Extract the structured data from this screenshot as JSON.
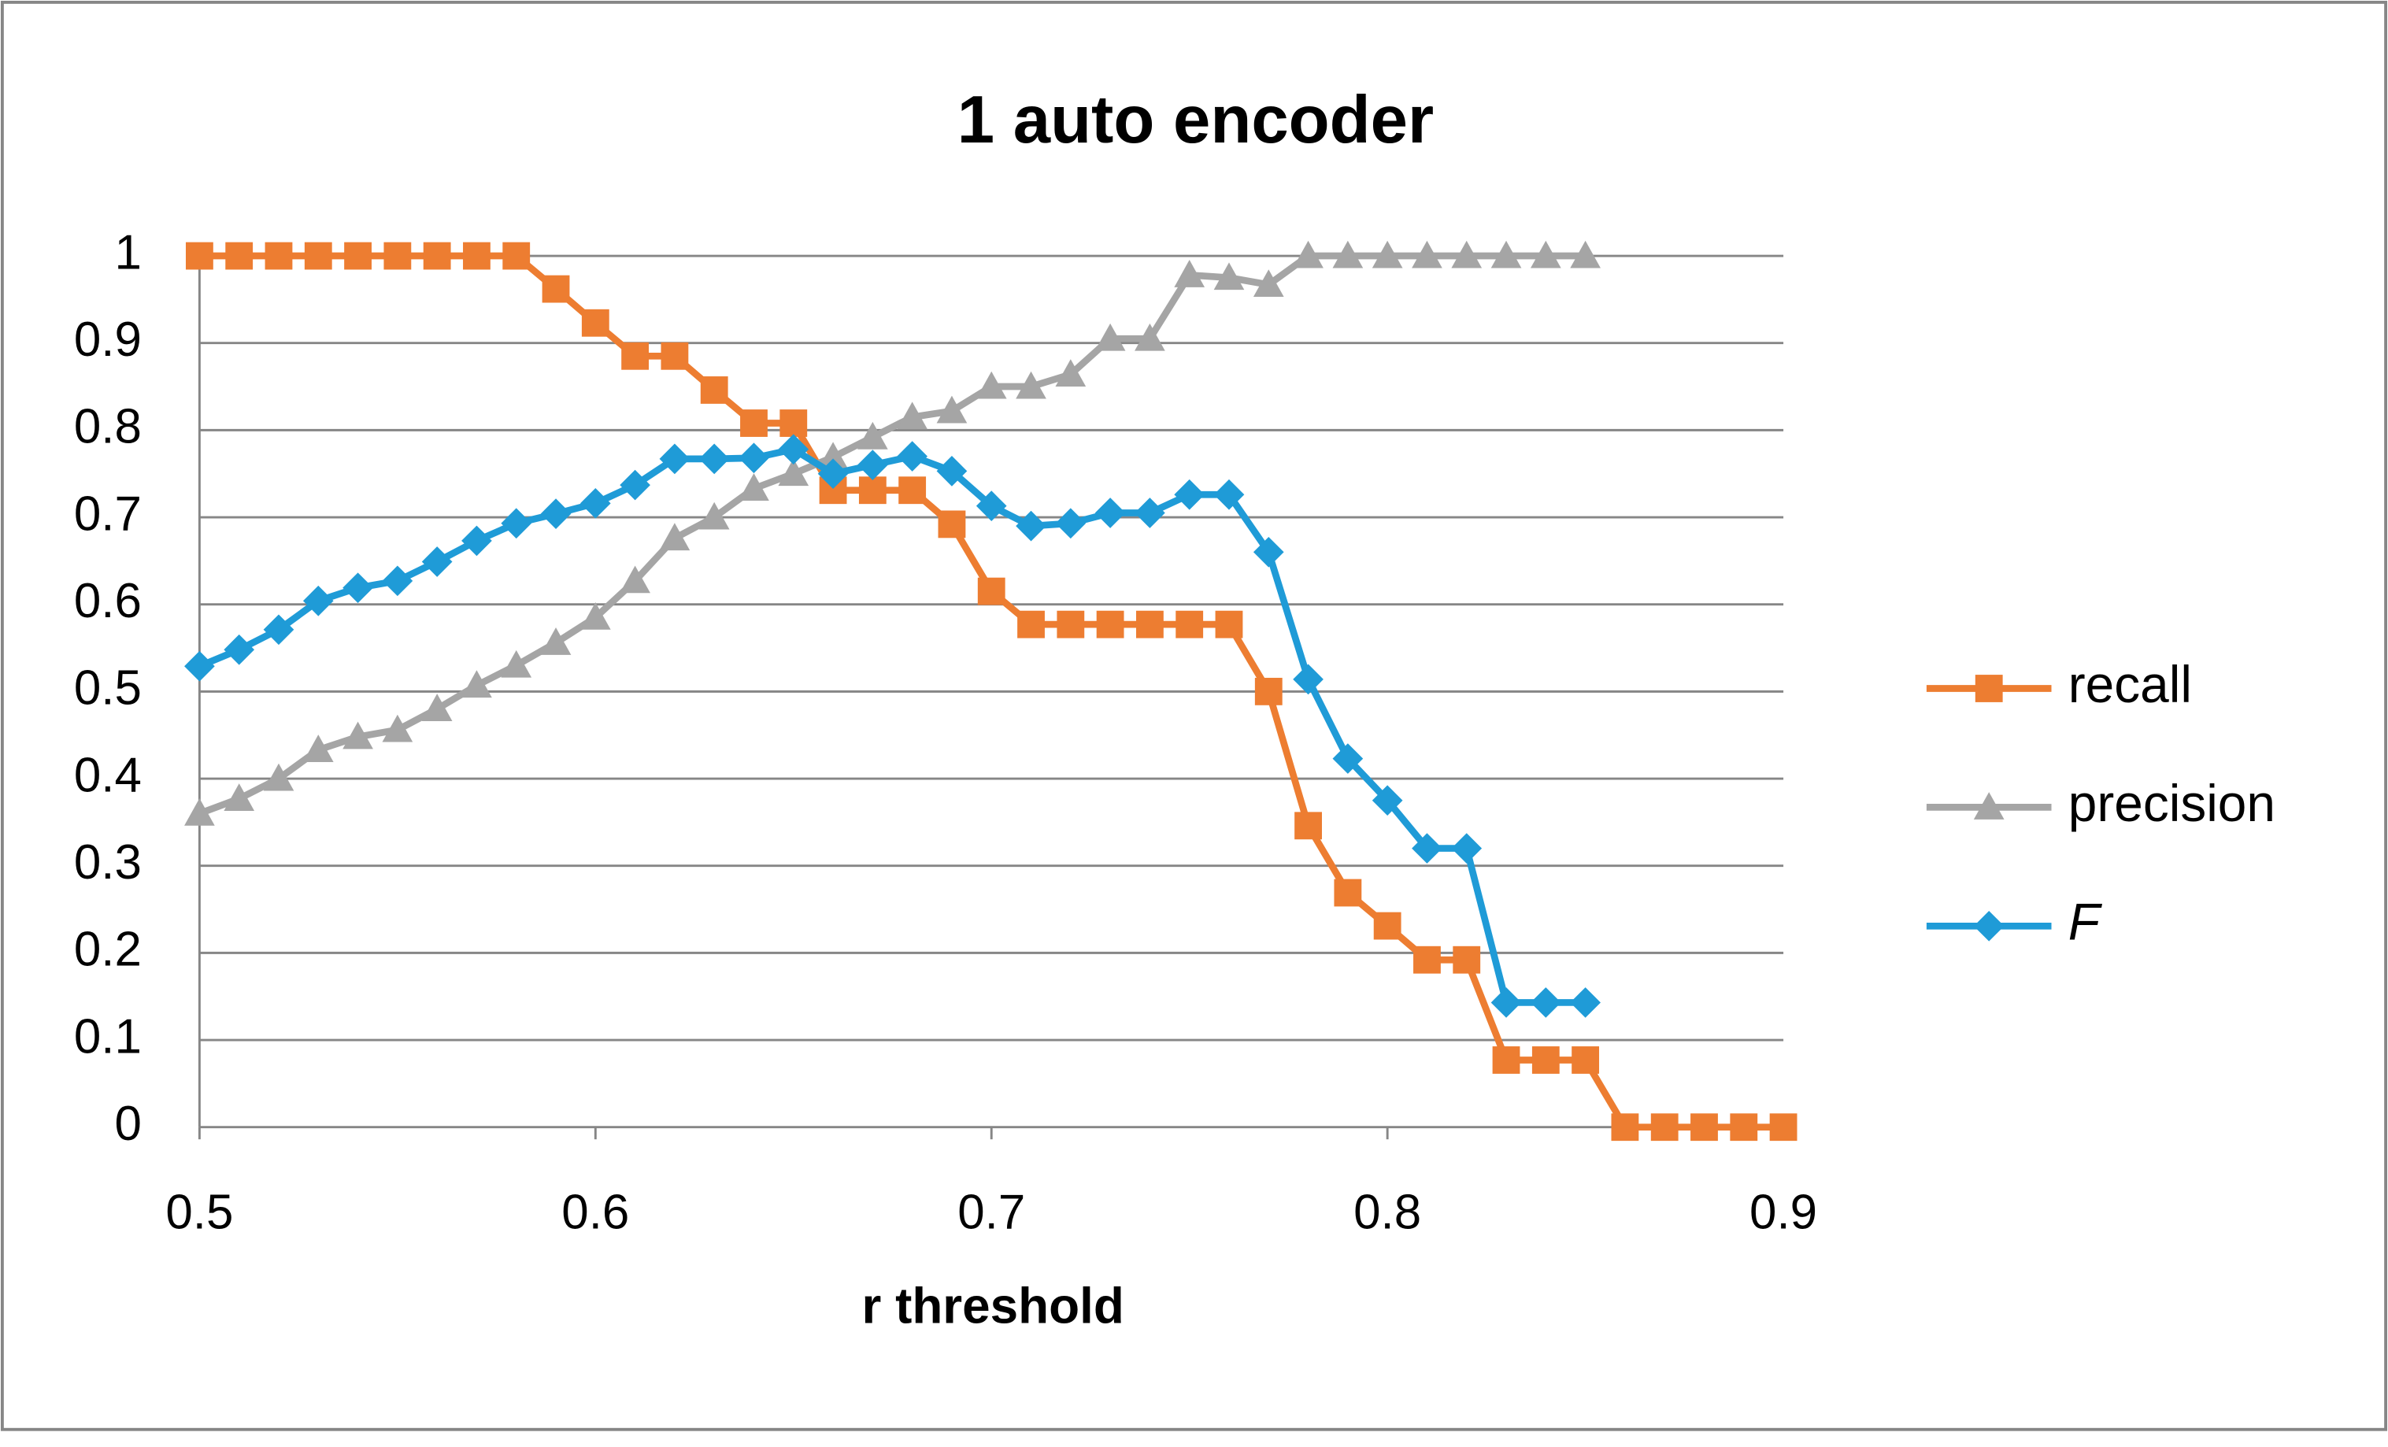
{
  "chart_data": {
    "type": "line",
    "title": "1 auto encoder",
    "x_label": "r threshold",
    "xlim": [
      0.5,
      0.9
    ],
    "ylim": [
      0,
      1
    ],
    "xticks": [
      0.5,
      0.6,
      0.7,
      0.8,
      0.9
    ],
    "yticks": [
      0,
      0.1,
      0.2,
      0.3,
      0.4,
      0.5,
      0.6,
      0.7,
      0.8,
      0.9,
      1
    ],
    "grid": true,
    "legend": "right",
    "series": [
      {
        "name": "recall",
        "color": "#ED7D31",
        "marker": "square",
        "x": [
          0.5,
          0.51,
          0.52,
          0.53,
          0.54,
          0.55,
          0.56,
          0.57,
          0.58,
          0.59,
          0.6,
          0.61,
          0.62,
          0.63,
          0.64,
          0.65,
          0.66,
          0.67,
          0.68,
          0.69,
          0.7,
          0.71,
          0.72,
          0.73,
          0.74,
          0.75,
          0.76,
          0.77,
          0.78,
          0.79,
          0.8,
          0.81,
          0.82,
          0.83,
          0.84,
          0.85,
          0.86,
          0.87,
          0.88,
          0.89,
          0.9
        ],
        "values": [
          1,
          1,
          1,
          1,
          1,
          1,
          1,
          1,
          1,
          0.962,
          0.923,
          0.885,
          0.885,
          0.846,
          0.808,
          0.808,
          0.731,
          0.731,
          0.731,
          0.692,
          0.615,
          0.577,
          0.577,
          0.577,
          0.577,
          0.577,
          0.577,
          0.5,
          0.346,
          0.269,
          0.231,
          0.192,
          0.192,
          0.077,
          0.077,
          0.077,
          0,
          0,
          0,
          0,
          0
        ]
      },
      {
        "name": "precision",
        "color": "#A5A5A5",
        "marker": "triangle",
        "x": [
          0.5,
          0.51,
          0.52,
          0.53,
          0.54,
          0.55,
          0.56,
          0.57,
          0.58,
          0.59,
          0.6,
          0.61,
          0.62,
          0.63,
          0.64,
          0.65,
          0.66,
          0.67,
          0.68,
          0.69,
          0.7,
          0.71,
          0.72,
          0.73,
          0.74,
          0.75,
          0.76,
          0.77,
          0.78,
          0.79,
          0.8,
          0.81,
          0.82,
          0.83,
          0.84,
          0.85
        ],
        "values": [
          0.36,
          0.377,
          0.4,
          0.433,
          0.448,
          0.456,
          0.48,
          0.507,
          0.53,
          0.556,
          0.585,
          0.627,
          0.676,
          0.7,
          0.733,
          0.75,
          0.769,
          0.792,
          0.815,
          0.822,
          0.85,
          0.85,
          0.864,
          0.905,
          0.905,
          0.978,
          0.975,
          0.967,
          1,
          1,
          1,
          1,
          1,
          1,
          1,
          1
        ]
      },
      {
        "name": "F",
        "color": "#1F9BD7",
        "marker": "diamond",
        "x": [
          0.5,
          0.51,
          0.52,
          0.53,
          0.54,
          0.55,
          0.56,
          0.57,
          0.58,
          0.59,
          0.6,
          0.61,
          0.62,
          0.63,
          0.64,
          0.65,
          0.66,
          0.67,
          0.68,
          0.69,
          0.7,
          0.71,
          0.72,
          0.73,
          0.74,
          0.75,
          0.76,
          0.77,
          0.78,
          0.79,
          0.8,
          0.81,
          0.82,
          0.83,
          0.84,
          0.85
        ],
        "values": [
          0.529,
          0.548,
          0.571,
          0.604,
          0.619,
          0.627,
          0.649,
          0.673,
          0.693,
          0.704,
          0.716,
          0.737,
          0.767,
          0.767,
          0.768,
          0.778,
          0.75,
          0.76,
          0.77,
          0.753,
          0.713,
          0.69,
          0.693,
          0.705,
          0.705,
          0.726,
          0.726,
          0.66,
          0.514,
          0.423,
          0.375,
          0.32,
          0.32,
          0.143,
          0.143,
          0.143
        ]
      }
    ]
  }
}
